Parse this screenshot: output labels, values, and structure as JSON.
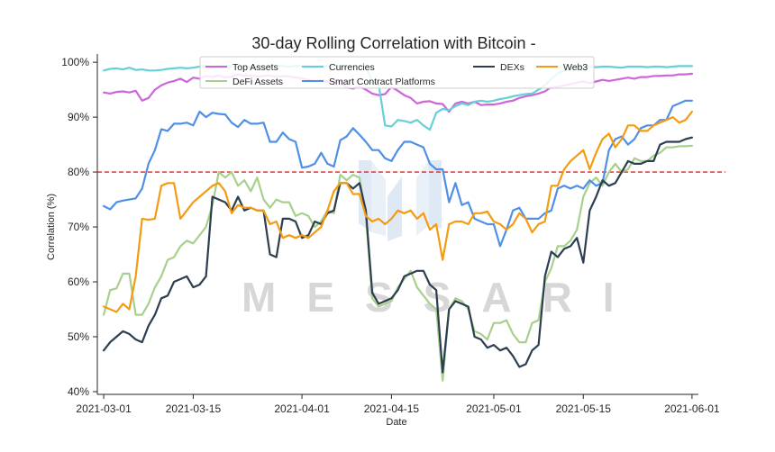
{
  "chart_data": {
    "type": "line",
    "title": "30-day Rolling Correlation with Bitcoin -",
    "xlabel": "Date",
    "ylabel": "Correlation (%)",
    "ylim": [
      39.5,
      101.5
    ],
    "yticks": [
      40,
      50,
      60,
      70,
      80,
      90,
      100
    ],
    "ytick_labels": [
      "40%",
      "50%",
      "60%",
      "70%",
      "80%",
      "90%",
      "100%"
    ],
    "x_start": "2021-03-01",
    "x_range_days": [
      -1,
      93
    ],
    "xticks": [
      0,
      14,
      31,
      45,
      61,
      75,
      92
    ],
    "xtick_labels": [
      "2021-03-01",
      "2021-03-15",
      "2021-04-01",
      "2021-04-15",
      "2021-05-01",
      "2021-05-15",
      "2021-06-01"
    ],
    "reference_line": {
      "value": 80,
      "color": "#d62728",
      "style": "dashed"
    },
    "grid": false,
    "legend_location": "top-center",
    "watermark": "MESSARI",
    "series": [
      {
        "name": "Top Assets",
        "color": "#cc66d9",
        "start_day": 0,
        "values": [
          94.5,
          94.3,
          94.6,
          94.7,
          94.5,
          94.8,
          93.0,
          93.5,
          95.0,
          95.8,
          96.3,
          96.6,
          97.0,
          96.4,
          97.2,
          97.0,
          97.5,
          97.3,
          97.6,
          97.2,
          97.4,
          97.8,
          97.5,
          97.6,
          97.4,
          97.5,
          97.6,
          97.3,
          97.5,
          97.4,
          97.2,
          97.1,
          96.8,
          96.6,
          96.8,
          96.5,
          96.3,
          96.5,
          95.4,
          95.2,
          95.6,
          95.0,
          94.3,
          94.0,
          94.2,
          95.5,
          94.8,
          94.0,
          93.5,
          92.5,
          92.8,
          92.9,
          92.5,
          92.4,
          91.0,
          92.5,
          92.8,
          92.5,
          92.8,
          92.2,
          92.3,
          92.3,
          92.5,
          92.8,
          93.0,
          93.5,
          93.8,
          94.0,
          94.3,
          94.7,
          95.5,
          95.5,
          95.8,
          96.0,
          96.3,
          96.5,
          96.2,
          96.5,
          96.8,
          96.6,
          96.8,
          97.0,
          97.2,
          97.0,
          97.3,
          97.3,
          97.5,
          97.5,
          97.6,
          97.6,
          97.8,
          97.8,
          97.9
        ]
      },
      {
        "name": "DeFi Assets",
        "color": "#a8d08d",
        "start_day": 0,
        "values": [
          54.0,
          58.5,
          58.8,
          61.5,
          61.5,
          54.0,
          54.0,
          56.0,
          59.0,
          61.0,
          64.0,
          64.5,
          66.5,
          67.5,
          67.0,
          68.5,
          70.0,
          74.0,
          80.0,
          79.0,
          80.0,
          77.5,
          78.5,
          76.5,
          79.0,
          75.0,
          73.5,
          75.0,
          74.5,
          74.5,
          72.0,
          72.5,
          72.0,
          70.0,
          71.0,
          73.0,
          72.5,
          79.5,
          78.5,
          79.5,
          79.0,
          72.0,
          57.0,
          55.5,
          56.0,
          56.5,
          59.0,
          60.5,
          62.0,
          59.0,
          57.5,
          56.0,
          55.0,
          42.0,
          55.0,
          57.0,
          56.5,
          55.0,
          51.0,
          50.5,
          49.5,
          52.5,
          52.5,
          53.0,
          50.5,
          49.0,
          49.0,
          52.5,
          53.0,
          60.0,
          62.5,
          66.5,
          66.5,
          67.5,
          69.5,
          75.5,
          78.0,
          79.0,
          77.5,
          80.0,
          81.5,
          80.0,
          80.5,
          82.5,
          82.0,
          82.0,
          83.0,
          83.5,
          84.5,
          84.5,
          84.7,
          84.7,
          84.8
        ]
      },
      {
        "name": "Currencies",
        "color": "#66cfd9",
        "start_day": 0,
        "values": [
          98.5,
          98.8,
          98.9,
          98.7,
          99.0,
          98.6,
          98.7,
          98.5,
          98.5,
          98.6,
          98.8,
          98.9,
          99.0,
          98.9,
          99.0,
          99.2,
          99.2,
          99.1,
          99.3,
          99.2,
          99.3,
          99.2,
          99.3,
          99.1,
          99.2,
          99.3,
          99.2,
          99.4,
          99.3,
          99.2,
          99.3,
          99.3,
          99.3,
          99.2,
          99.3,
          99.3,
          99.4,
          99.3,
          99.2,
          99.3,
          99.3,
          99.3,
          96.5,
          96.0,
          88.5,
          88.3,
          89.5,
          89.3,
          89.0,
          89.5,
          88.5,
          87.7,
          90.8,
          91.5,
          91.3,
          92.0,
          92.5,
          92.2,
          92.8,
          93.0,
          92.8,
          93.0,
          93.3,
          93.5,
          93.8,
          94.0,
          94.2,
          94.3,
          95.0,
          95.8,
          97.0,
          98.0,
          98.5,
          98.8,
          99.0,
          99.1,
          99.2,
          99.1,
          99.2,
          99.2,
          99.1,
          99.0,
          99.2,
          99.2,
          99.2,
          99.1,
          99.2,
          99.2,
          99.1,
          99.2,
          99.3,
          99.3,
          99.3
        ]
      },
      {
        "name": "Smart Contract Platforms",
        "color": "#4f8fe8",
        "start_day": 0,
        "values": [
          73.8,
          73.2,
          74.5,
          74.8,
          75.0,
          75.2,
          77.0,
          81.5,
          84.0,
          87.8,
          87.5,
          88.8,
          88.8,
          89.0,
          88.5,
          91.0,
          90.0,
          90.8,
          90.6,
          90.5,
          89.0,
          88.2,
          89.5,
          88.8,
          88.8,
          89.0,
          85.5,
          85.5,
          87.2,
          86.0,
          85.5,
          80.8,
          81.0,
          81.5,
          83.5,
          81.5,
          81.0,
          85.8,
          86.5,
          88.0,
          86.8,
          85.5,
          84.0,
          84.0,
          82.5,
          82.0,
          84.0,
          85.5,
          85.5,
          85.0,
          84.5,
          81.5,
          80.5,
          80.5,
          74.5,
          78.0,
          74.0,
          74.5,
          71.5,
          71.0,
          70.5,
          70.5,
          66.5,
          69.5,
          73.0,
          73.5,
          71.5,
          71.5,
          71.5,
          72.5,
          73.0,
          77.0,
          77.5,
          77.0,
          77.5,
          77.0,
          78.5,
          77.5,
          78.0,
          84.0,
          86.0,
          86.5,
          85.0,
          86.0,
          88.0,
          88.5,
          88.5,
          89.5,
          89.5,
          92.0,
          92.5,
          93.0,
          93.0
        ]
      },
      {
        "name": "DEXs",
        "color": "#2c3e50",
        "start_day": 0,
        "values": [
          47.5,
          49.0,
          50.0,
          51.0,
          50.5,
          49.5,
          49.0,
          52.0,
          54.0,
          57.0,
          57.5,
          60.0,
          60.5,
          61.0,
          59.0,
          59.5,
          61.0,
          75.5,
          75.0,
          74.5,
          73.0,
          75.5,
          73.0,
          73.5,
          73.0,
          73.0,
          65.0,
          64.5,
          71.5,
          71.5,
          71.0,
          68.0,
          68.5,
          71.0,
          70.5,
          72.5,
          73.0,
          78.0,
          78.0,
          77.0,
          78.0,
          73.0,
          58.0,
          56.0,
          56.5,
          57.0,
          58.5,
          61.0,
          61.5,
          62.0,
          62.0,
          59.5,
          58.5,
          43.5,
          55.0,
          56.5,
          56.0,
          55.5,
          50.0,
          49.5,
          48.0,
          48.5,
          47.5,
          48.0,
          46.5,
          44.5,
          45.0,
          47.5,
          48.5,
          61.0,
          65.5,
          64.5,
          66.0,
          66.5,
          68.0,
          63.5,
          73.0,
          75.5,
          78.5,
          77.5,
          78.0,
          80.0,
          82.0,
          81.5,
          81.5,
          82.0,
          82.0,
          85.0,
          85.5,
          85.5,
          85.5,
          86.0,
          86.3
        ]
      },
      {
        "name": "Web3",
        "color": "#f39c12",
        "start_day": 0,
        "values": [
          55.5,
          55.0,
          54.5,
          56.0,
          55.0,
          61.0,
          71.5,
          71.3,
          71.5,
          77.5,
          78.0,
          78.0,
          71.5,
          73.0,
          74.5,
          75.5,
          76.5,
          77.5,
          78.0,
          76.5,
          72.5,
          74.0,
          73.5,
          73.5,
          73.0,
          73.0,
          70.5,
          71.0,
          68.0,
          68.5,
          68.0,
          68.5,
          68.0,
          69.0,
          70.0,
          73.0,
          76.5,
          78.0,
          78.0,
          76.0,
          76.0,
          72.0,
          71.0,
          71.5,
          70.5,
          71.5,
          73.0,
          72.5,
          73.0,
          71.5,
          72.5,
          69.5,
          70.5,
          64.0,
          70.5,
          71.0,
          71.0,
          70.5,
          72.5,
          72.5,
          72.8,
          71.0,
          70.5,
          69.5,
          70.5,
          72.5,
          71.5,
          69.0,
          70.5,
          71.0,
          77.5,
          77.5,
          80.5,
          82.0,
          83.0,
          84.0,
          80.5,
          83.5,
          86.0,
          87.0,
          84.5,
          86.0,
          88.5,
          88.5,
          87.5,
          87.5,
          88.5,
          89.0,
          89.5,
          90.0,
          89.0,
          89.5,
          91.0
        ]
      }
    ],
    "legend_rows": [
      [
        "Top Assets",
        "Currencies",
        "DEXs",
        "Web3"
      ],
      [
        "DeFi Assets",
        "Smart Contract Platforms"
      ]
    ]
  }
}
